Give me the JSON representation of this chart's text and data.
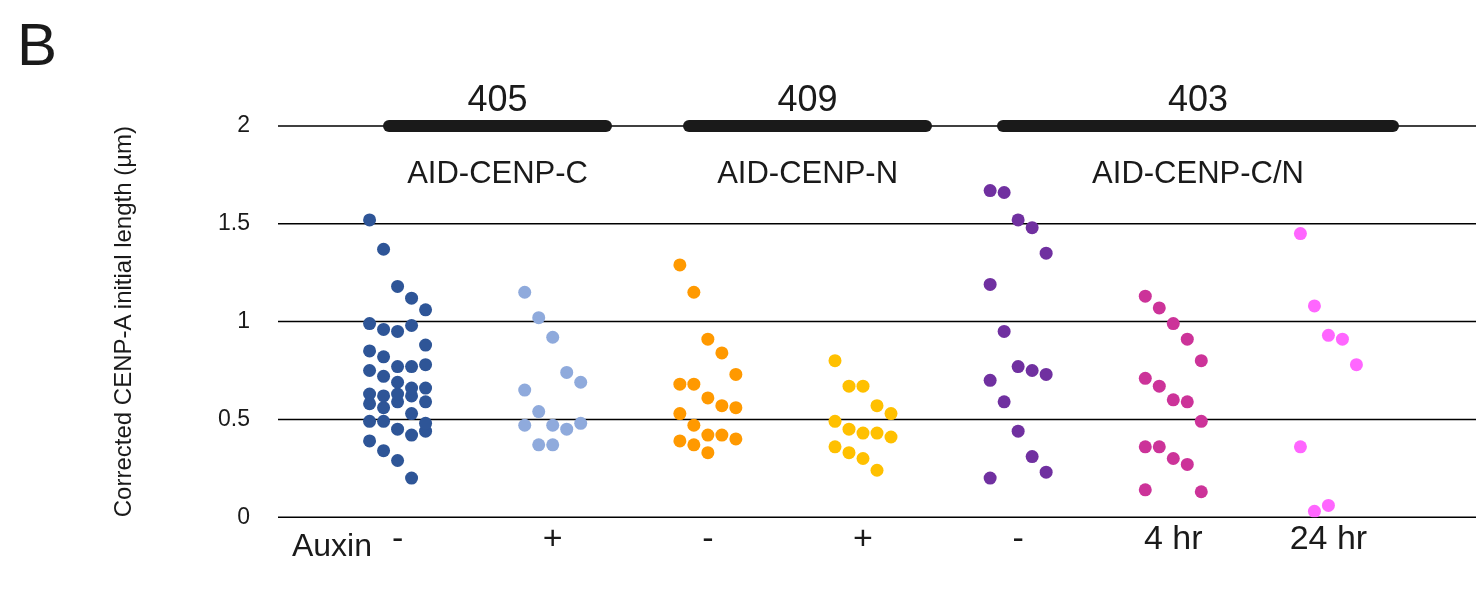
{
  "chart_data": {
    "type": "scatter",
    "xlabel": "Auxin",
    "ylabel": "Corrected CENP-A initial length (µm)",
    "annotations": [
      "B",
      "405",
      "409",
      "403",
      "AID-CENP-C",
      "AID-CENP-N",
      "AID-CENP-C/N"
    ],
    "categories": [
      "-",
      "+",
      "-",
      "+",
      "-",
      "4 hr",
      "24 hr"
    ],
    "ylim": [
      0,
      2
    ],
    "yticks": [
      0,
      0.5,
      1,
      1.5,
      2
    ],
    "grid": "y",
    "legend": false,
    "marker": "circle",
    "series": [
      {
        "colors": [
          "#2e5597",
          "#8faadc",
          "#ff9900",
          "#ffc000",
          "#7030a0",
          "#cc3399",
          "#ff66ff"
        ],
        "values": [
          1.52,
          1.15,
          1.29,
          0.8,
          1.67,
          1.13,
          1.45
        ]
      },
      {
        "colors": [
          "#2e5597",
          "#8faadc",
          "#ff9900",
          "#ffc000",
          "#7030a0",
          "#cc3399",
          "#ff66ff"
        ],
        "values": [
          1.37,
          1.02,
          1.15,
          0.67,
          1.66,
          1.07,
          1.08
        ]
      },
      {
        "colors": [
          "#2e5597",
          "#8faadc",
          "#ff9900",
          "#ffc000",
          "#7030a0",
          "#cc3399",
          "#ff66ff"
        ],
        "values": [
          1.18,
          0.92,
          0.91,
          0.67,
          1.52,
          0.99,
          0.93
        ]
      },
      {
        "colors": [
          "#2e5597",
          "#8faadc",
          "#ff9900",
          "#ffc000",
          "#7030a0",
          "#cc3399",
          "#ff66ff"
        ],
        "values": [
          1.12,
          0.74,
          0.84,
          0.57,
          1.48,
          0.91,
          0.91
        ]
      },
      {
        "colors": [
          "#2e5597",
          "#8faadc",
          "#ff9900",
          "#ffc000",
          "#7030a0",
          "#cc3399",
          "#ff66ff"
        ],
        "values": [
          1.06,
          0.69,
          0.73,
          0.53,
          1.35,
          0.8,
          0.78
        ]
      },
      {
        "colors": [
          "#2e5597",
          "#8faadc",
          "#ff9900",
          "#ffc000",
          "#7030a0",
          "#cc3399",
          "#ff66ff"
        ],
        "values": [
          0.99,
          0.65,
          0.68,
          0.49,
          1.19,
          0.71,
          0.36
        ]
      },
      {
        "colors": [
          "#2e5597",
          "#8faadc",
          "#ff9900",
          "#ffc000",
          "#7030a0",
          "#cc3399",
          "#ff66ff"
        ],
        "values": [
          0.96,
          0.54,
          0.68,
          0.45,
          0.95,
          0.67,
          0.03
        ]
      },
      {
        "colors": [
          "#2e5597",
          "#8faadc",
          "#ff9900",
          "#ffc000",
          "#7030a0",
          "#cc3399",
          "#ff66ff"
        ],
        "values": [
          0.95,
          0.47,
          0.61,
          0.43,
          0.77,
          0.6,
          0.06
        ]
      },
      {
        "colors": [
          "#2e5597",
          "#8faadc",
          "#ff9900",
          "#ffc000",
          "#7030a0",
          "#cc3399",
          "#ff66ff"
        ],
        "values": [
          0.98,
          0.45,
          0.57,
          0.43,
          0.75,
          0.59,
          null
        ]
      },
      {
        "colors": [
          "#2e5597",
          "#8faadc",
          "#ff9900",
          "#ffc000",
          "#7030a0",
          "#cc3399",
          "#ff66ff"
        ],
        "values": [
          0.88,
          0.48,
          0.56,
          0.41,
          0.73,
          0.49,
          null
        ]
      },
      {
        "colors": [
          "#2e5597",
          "#8faadc",
          "#ff9900",
          "#ffc000",
          "#7030a0",
          "#cc3399",
          "#ff66ff"
        ],
        "values": [
          0.85,
          0.47,
          0.53,
          0.36,
          0.7,
          0.36,
          null
        ]
      },
      {
        "colors": [
          "#2e5597",
          "#8faadc",
          "#ff9900",
          "#ffc000",
          "#7030a0",
          "#cc3399",
          "#ff66ff"
        ],
        "values": [
          0.82,
          0.37,
          0.47,
          0.33,
          0.59,
          0.36,
          null
        ]
      },
      {
        "colors": [
          "#2e5597",
          "#8faadc",
          "#ff9900",
          "#ffc000",
          "#7030a0",
          "#cc3399",
          "#ff66ff"
        ],
        "values": [
          0.77,
          0.37,
          0.42,
          0.3,
          0.44,
          0.3,
          null
        ]
      },
      {
        "colors": [
          "#2e5597",
          "#8faadc",
          "#ff9900",
          "#ffc000",
          "#7030a0",
          "#cc3399",
          "#ff66ff"
        ],
        "values": [
          0.77,
          null,
          0.42,
          0.24,
          0.31,
          0.27,
          null
        ]
      },
      {
        "colors": [
          "#2e5597",
          "#8faadc",
          "#ff9900",
          "#ffc000",
          "#7030a0",
          "#cc3399",
          "#ff66ff"
        ],
        "values": [
          0.78,
          null,
          0.4,
          null,
          0.23,
          0.13,
          null
        ]
      },
      {
        "colors": [
          "#2e5597",
          "#8faadc",
          "#ff9900",
          "#ffc000",
          "#7030a0",
          "#cc3399",
          "#ff66ff"
        ],
        "values": [
          0.75,
          null,
          0.39,
          null,
          0.2,
          0.14,
          null
        ]
      },
      {
        "colors": [
          "#2e5597",
          "#8faadc",
          "#ff9900",
          "#ffc000",
          "#7030a0",
          "#cc3399",
          "#ff66ff"
        ],
        "values": [
          0.72,
          null,
          0.37,
          null,
          null,
          null,
          null
        ]
      },
      {
        "colors": [
          "#2e5597",
          "#8faadc",
          "#ff9900",
          "#ffc000",
          "#7030a0",
          "#cc3399",
          "#ff66ff"
        ],
        "values": [
          0.69,
          null,
          0.33,
          null,
          null,
          null,
          null
        ]
      },
      {
        "colors": [
          "#2e5597",
          "#8faadc",
          "#ff9900",
          "#ffc000",
          "#7030a0",
          "#cc3399",
          "#ff66ff"
        ],
        "values": [
          0.66,
          null,
          null,
          null,
          null,
          null,
          null
        ]
      },
      {
        "colors": [
          "#2e5597",
          "#8faadc",
          "#ff9900",
          "#ffc000",
          "#7030a0",
          "#cc3399",
          "#ff66ff"
        ],
        "values": [
          0.66,
          null,
          null,
          null,
          null,
          null,
          null
        ]
      },
      {
        "colors": [
          "#2e5597",
          "#8faadc",
          "#ff9900",
          "#ffc000",
          "#7030a0",
          "#cc3399",
          "#ff66ff"
        ],
        "values": [
          0.63,
          null,
          null,
          null,
          null,
          null,
          null
        ]
      },
      {
        "colors": [
          "#2e5597",
          "#8faadc",
          "#ff9900",
          "#ffc000",
          "#7030a0",
          "#cc3399",
          "#ff66ff"
        ],
        "values": [
          0.62,
          null,
          null,
          null,
          null,
          null,
          null
        ]
      },
      {
        "colors": [
          "#2e5597",
          "#8faadc",
          "#ff9900",
          "#ffc000",
          "#7030a0",
          "#cc3399",
          "#ff66ff"
        ],
        "values": [
          0.63,
          null,
          null,
          null,
          null,
          null,
          null
        ]
      },
      {
        "colors": [
          "#2e5597",
          "#8faadc",
          "#ff9900",
          "#ffc000",
          "#7030a0",
          "#cc3399",
          "#ff66ff"
        ],
        "values": [
          0.62,
          null,
          null,
          null,
          null,
          null,
          null
        ]
      },
      {
        "colors": [
          "#2e5597",
          "#8faadc",
          "#ff9900",
          "#ffc000",
          "#7030a0",
          "#cc3399",
          "#ff66ff"
        ],
        "values": [
          0.59,
          null,
          null,
          null,
          null,
          null,
          null
        ]
      },
      {
        "colors": [
          "#2e5597",
          "#8faadc",
          "#ff9900",
          "#ffc000",
          "#7030a0",
          "#cc3399",
          "#ff66ff"
        ],
        "values": [
          0.58,
          null,
          null,
          null,
          null,
          null,
          null
        ]
      },
      {
        "colors": [
          "#2e5597",
          "#8faadc",
          "#ff9900",
          "#ffc000",
          "#7030a0",
          "#cc3399",
          "#ff66ff"
        ],
        "values": [
          0.56,
          null,
          null,
          null,
          null,
          null,
          null
        ]
      },
      {
        "colors": [
          "#2e5597",
          "#8faadc",
          "#ff9900",
          "#ffc000",
          "#7030a0",
          "#cc3399",
          "#ff66ff"
        ],
        "values": [
          0.59,
          null,
          null,
          null,
          null,
          null,
          null
        ]
      },
      {
        "colors": [
          "#2e5597",
          "#8faadc",
          "#ff9900",
          "#ffc000",
          "#7030a0",
          "#cc3399",
          "#ff66ff"
        ],
        "values": [
          0.53,
          null,
          null,
          null,
          null,
          null,
          null
        ]
      },
      {
        "colors": [
          "#2e5597",
          "#8faadc",
          "#ff9900",
          "#ffc000",
          "#7030a0",
          "#cc3399",
          "#ff66ff"
        ],
        "values": [
          0.48,
          null,
          null,
          null,
          null,
          null,
          null
        ]
      },
      {
        "colors": [
          "#2e5597",
          "#8faadc",
          "#ff9900",
          "#ffc000",
          "#7030a0",
          "#cc3399",
          "#ff66ff"
        ],
        "values": [
          0.49,
          null,
          null,
          null,
          null,
          null,
          null
        ]
      },
      {
        "colors": [
          "#2e5597",
          "#8faadc",
          "#ff9900",
          "#ffc000",
          "#7030a0",
          "#cc3399",
          "#ff66ff"
        ],
        "values": [
          0.49,
          null,
          null,
          null,
          null,
          null,
          null
        ]
      },
      {
        "colors": [
          "#2e5597",
          "#8faadc",
          "#ff9900",
          "#ffc000",
          "#7030a0",
          "#cc3399",
          "#ff66ff"
        ],
        "values": [
          0.45,
          null,
          null,
          null,
          null,
          null,
          null
        ]
      },
      {
        "colors": [
          "#2e5597",
          "#8faadc",
          "#ff9900",
          "#ffc000",
          "#7030a0",
          "#cc3399",
          "#ff66ff"
        ],
        "values": [
          0.42,
          null,
          null,
          null,
          null,
          null,
          null
        ]
      },
      {
        "colors": [
          "#2e5597",
          "#8faadc",
          "#ff9900",
          "#ffc000",
          "#7030a0",
          "#cc3399",
          "#ff66ff"
        ],
        "values": [
          0.44,
          null,
          null,
          null,
          null,
          null,
          null
        ]
      },
      {
        "colors": [
          "#2e5597",
          "#8faadc",
          "#ff9900",
          "#ffc000",
          "#7030a0",
          "#cc3399",
          "#ff66ff"
        ],
        "values": [
          0.39,
          null,
          null,
          null,
          null,
          null,
          null
        ]
      },
      {
        "colors": [
          "#2e5597",
          "#8faadc",
          "#ff9900",
          "#ffc000",
          "#7030a0",
          "#cc3399",
          "#ff66ff"
        ],
        "values": [
          0.34,
          null,
          null,
          null,
          null,
          null,
          null
        ]
      },
      {
        "colors": [
          "#2e5597",
          "#8faadc",
          "#ff9900",
          "#ffc000",
          "#7030a0",
          "#cc3399",
          "#ff66ff"
        ],
        "values": [
          0.29,
          null,
          null,
          null,
          null,
          null,
          null
        ]
      },
      {
        "colors": [
          "#2e5597",
          "#8faadc",
          "#ff9900",
          "#ffc000",
          "#7030a0",
          "#cc3399",
          "#ff66ff"
        ],
        "values": [
          0.2,
          null,
          null,
          null,
          null,
          null,
          null
        ]
      }
    ]
  }
}
